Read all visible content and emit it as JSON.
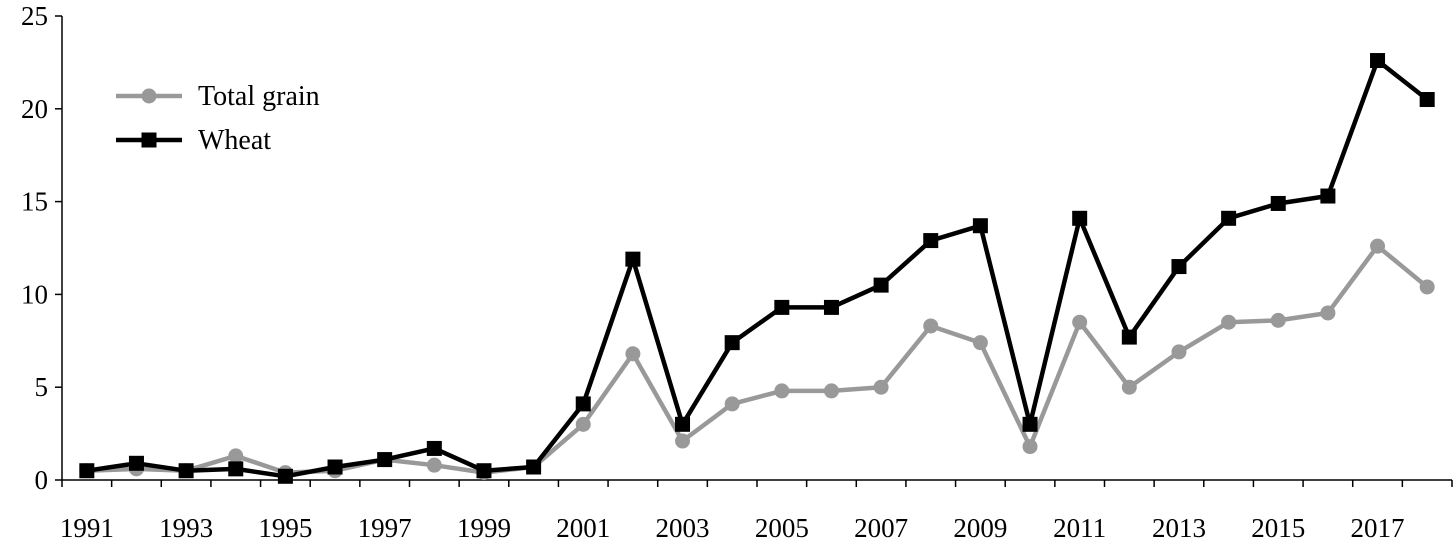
{
  "chart_data": {
    "type": "line",
    "title": "",
    "xlabel": "",
    "ylabel": "",
    "x": [
      1991,
      1992,
      1993,
      1994,
      1995,
      1996,
      1997,
      1998,
      1999,
      2000,
      2001,
      2002,
      2003,
      2004,
      2005,
      2006,
      2007,
      2008,
      2009,
      2010,
      2011,
      2012,
      2013,
      2014,
      2015,
      2016,
      2017,
      2018
    ],
    "x_tick_labels": [
      "1991",
      "1993",
      "1995",
      "1997",
      "1999",
      "2001",
      "2003",
      "2005",
      "2007",
      "2009",
      "2011",
      "2013",
      "2015",
      "2017"
    ],
    "ylim": [
      0,
      25
    ],
    "y_tick_labels": [
      "0",
      "5",
      "10",
      "15",
      "20",
      "25"
    ],
    "y_ticks": [
      0,
      5,
      10,
      15,
      20,
      25
    ],
    "grid": false,
    "legend_position": "top-left",
    "series": [
      {
        "name": "Total grain",
        "color": "#999999",
        "marker": "circle",
        "values": [
          0.5,
          0.6,
          0.5,
          1.3,
          0.4,
          0.5,
          1.1,
          0.8,
          0.4,
          0.7,
          3.0,
          6.8,
          2.1,
          4.1,
          4.8,
          4.8,
          5.0,
          8.3,
          7.4,
          1.8,
          8.5,
          5.0,
          6.9,
          8.5,
          8.6,
          9.0,
          12.6,
          10.4
        ]
      },
      {
        "name": "Wheat",
        "color": "#000000",
        "marker": "square",
        "values": [
          0.5,
          0.9,
          0.5,
          0.6,
          0.2,
          0.7,
          1.1,
          1.7,
          0.5,
          0.7,
          4.1,
          11.9,
          3.0,
          7.4,
          9.3,
          9.3,
          10.5,
          12.9,
          13.7,
          3.0,
          14.1,
          7.7,
          11.5,
          14.1,
          14.9,
          15.3,
          22.6,
          20.5
        ]
      }
    ]
  }
}
